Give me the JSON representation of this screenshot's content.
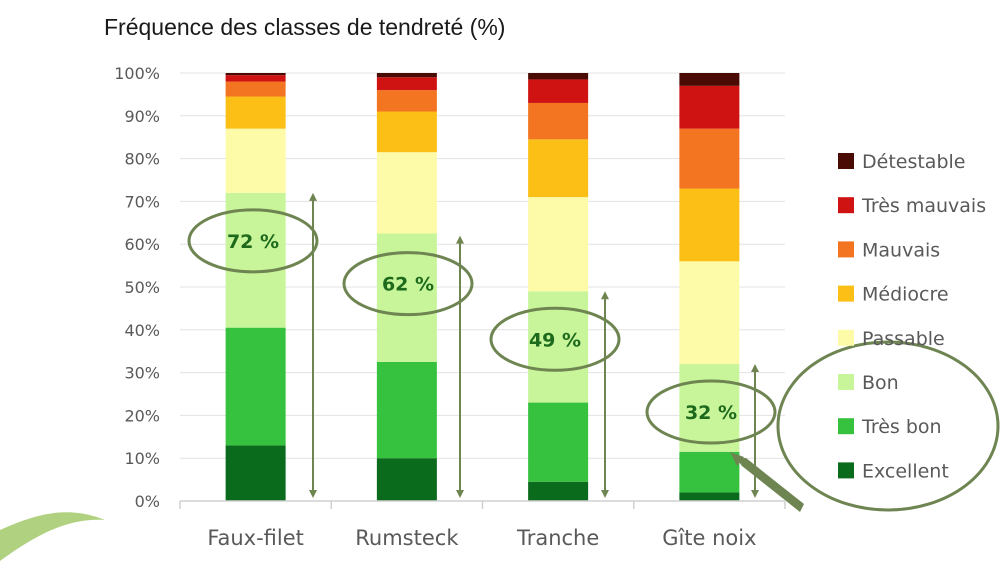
{
  "chart_data": {
    "type": "bar",
    "stacked": true,
    "title": "Fréquence des classes de tendreté (%)",
    "xlabel": "",
    "ylabel": "",
    "ylim": [
      0,
      100
    ],
    "yticks": [
      "0%",
      "10%",
      "20%",
      "30%",
      "40%",
      "50%",
      "60%",
      "70%",
      "80%",
      "90%",
      "100%"
    ],
    "categories": [
      "Faux-filet",
      "Rumsteck",
      "Tranche",
      "Gîte noix"
    ],
    "legend_position": "right",
    "series": [
      {
        "name": "Excellent",
        "color": "#0b6b1c",
        "values": [
          13,
          10,
          4.5,
          2
        ]
      },
      {
        "name": "Très bon",
        "color": "#36c23f",
        "values": [
          27.5,
          22.5,
          18.5,
          9.5
        ]
      },
      {
        "name": "Bon",
        "color": "#c8f59a",
        "values": [
          31.5,
          30,
          26,
          20.5
        ]
      },
      {
        "name": "Passable",
        "color": "#fdfaa8",
        "values": [
          15,
          19,
          22,
          24
        ]
      },
      {
        "name": "Médiocre",
        "color": "#fbbf16",
        "values": [
          7.5,
          9.5,
          13.5,
          17
        ]
      },
      {
        "name": "Mauvais",
        "color": "#f37421",
        "values": [
          3.5,
          5,
          8.5,
          14
        ]
      },
      {
        "name": "Très mauvais",
        "color": "#cf1313",
        "values": [
          1.5,
          3,
          5.5,
          10
        ]
      },
      {
        "name": "Détestable",
        "color": "#4b0b05",
        "values": [
          0.5,
          1,
          1.5,
          3
        ]
      }
    ],
    "annotations": [
      {
        "category": "Faux-filet",
        "text": "72 %",
        "value": 72
      },
      {
        "category": "Rumsteck",
        "text": "62 %",
        "value": 62
      },
      {
        "category": "Tranche",
        "text": "49 %",
        "value": 49
      },
      {
        "category": "Gîte noix",
        "text": "32 %",
        "value": 32
      }
    ],
    "grid": true
  },
  "colors": {
    "annotation_ring": "#6e8552",
    "axis": "#d0d0d0"
  }
}
